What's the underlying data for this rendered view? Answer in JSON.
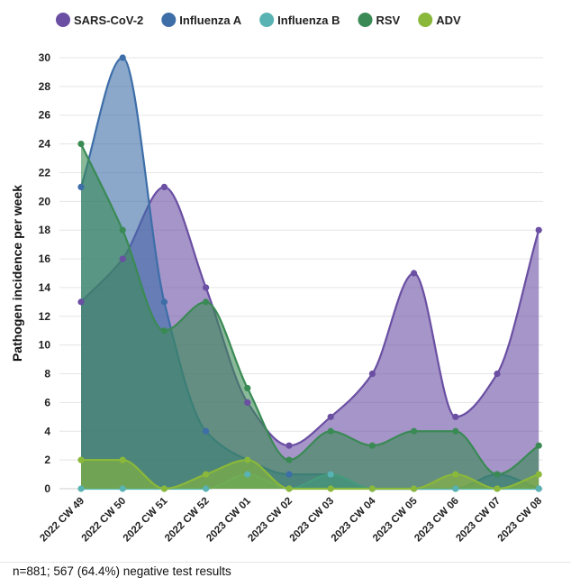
{
  "chart_data": {
    "type": "area",
    "ylabel": "Pathogen incidence per week",
    "xlabel": "",
    "ylim": [
      0,
      30
    ],
    "y_ticks": [
      0,
      2,
      4,
      6,
      8,
      10,
      12,
      14,
      16,
      18,
      20,
      22,
      24,
      26,
      28,
      30
    ],
    "categories": [
      "2022 CW 49",
      "2022 CW 50",
      "2022 CW 51",
      "2022 CW 52",
      "2023 CW 01",
      "2023 CW 02",
      "2023 CW 03",
      "2023 CW 04",
      "2023 CW 05",
      "2023 CW 06",
      "2023 CW 07",
      "2023 CW 08"
    ],
    "grid": true,
    "legend_position": "top",
    "series": [
      {
        "name": "SARS-CoV-2",
        "color": "#6a4fa3",
        "values": [
          13,
          16,
          21,
          14,
          6,
          3,
          5,
          8,
          15,
          5,
          8,
          18
        ]
      },
      {
        "name": "Influenza A",
        "color": "#3d6ea8",
        "values": [
          21,
          30,
          13,
          4,
          2,
          1,
          1,
          0,
          0,
          0,
          1,
          0
        ]
      },
      {
        "name": "Influenza B",
        "color": "#59b3b3",
        "values": [
          0,
          0,
          0,
          0,
          1,
          0,
          1,
          0,
          0,
          0,
          0,
          0
        ]
      },
      {
        "name": "RSV",
        "color": "#3a8a55",
        "values": [
          24,
          18,
          11,
          13,
          7,
          2,
          4,
          3,
          4,
          4,
          1,
          3
        ]
      },
      {
        "name": "ADV",
        "color": "#8ab83a",
        "values": [
          2,
          2,
          0,
          1,
          2,
          0,
          0,
          0,
          0,
          1,
          0,
          1
        ]
      }
    ]
  },
  "footnote": "n=881; 567 (64.4%) negative test results"
}
